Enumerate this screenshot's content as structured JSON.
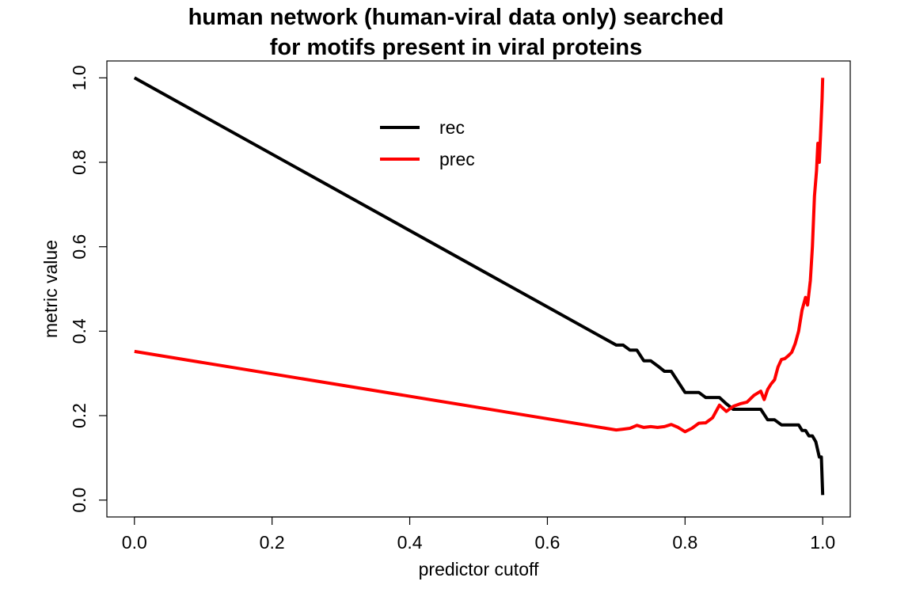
{
  "chart_data": {
    "type": "line",
    "title_lines": [
      "human network (human-viral data only) searched",
      "for motifs present in viral proteins"
    ],
    "xlabel": "predictor cutoff",
    "ylabel": "metric value",
    "xlim": [
      -0.04,
      1.04
    ],
    "ylim": [
      -0.04,
      1.04
    ],
    "x_ticks": [
      0.0,
      0.2,
      0.4,
      0.6,
      0.8,
      1.0
    ],
    "x_tick_labels": [
      "0.0",
      "0.2",
      "0.4",
      "0.6",
      "0.8",
      "1.0"
    ],
    "y_ticks": [
      0.0,
      0.2,
      0.4,
      0.6,
      0.8,
      1.0
    ],
    "y_tick_labels": [
      "0.0",
      "0.2",
      "0.4",
      "0.6",
      "0.8",
      "1.0"
    ],
    "grid": false,
    "legend_position": "top-center",
    "series": [
      {
        "name": "rec",
        "color": "#000000",
        "points": [
          [
            0.0,
            1.0
          ],
          [
            0.7,
            0.367
          ],
          [
            0.71,
            0.367
          ],
          [
            0.72,
            0.355
          ],
          [
            0.73,
            0.355
          ],
          [
            0.74,
            0.33
          ],
          [
            0.75,
            0.33
          ],
          [
            0.76,
            0.318
          ],
          [
            0.77,
            0.305
          ],
          [
            0.78,
            0.305
          ],
          [
            0.79,
            0.28
          ],
          [
            0.8,
            0.255
          ],
          [
            0.81,
            0.255
          ],
          [
            0.82,
            0.255
          ],
          [
            0.83,
            0.243
          ],
          [
            0.84,
            0.243
          ],
          [
            0.85,
            0.243
          ],
          [
            0.86,
            0.228
          ],
          [
            0.87,
            0.215
          ],
          [
            0.88,
            0.215
          ],
          [
            0.89,
            0.215
          ],
          [
            0.9,
            0.215
          ],
          [
            0.91,
            0.215
          ],
          [
            0.92,
            0.19
          ],
          [
            0.93,
            0.19
          ],
          [
            0.94,
            0.178
          ],
          [
            0.95,
            0.178
          ],
          [
            0.96,
            0.178
          ],
          [
            0.965,
            0.178
          ],
          [
            0.97,
            0.165
          ],
          [
            0.975,
            0.165
          ],
          [
            0.98,
            0.152
          ],
          [
            0.985,
            0.152
          ],
          [
            0.99,
            0.138
          ],
          [
            0.995,
            0.102
          ],
          [
            0.998,
            0.102
          ],
          [
            1.0,
            0.012
          ]
        ]
      },
      {
        "name": "prec",
        "color": "#ff0000",
        "points": [
          [
            0.0,
            0.352
          ],
          [
            0.7,
            0.166
          ],
          [
            0.71,
            0.168
          ],
          [
            0.72,
            0.17
          ],
          [
            0.73,
            0.177
          ],
          [
            0.74,
            0.172
          ],
          [
            0.75,
            0.174
          ],
          [
            0.76,
            0.172
          ],
          [
            0.77,
            0.174
          ],
          [
            0.78,
            0.179
          ],
          [
            0.79,
            0.172
          ],
          [
            0.8,
            0.162
          ],
          [
            0.81,
            0.17
          ],
          [
            0.82,
            0.182
          ],
          [
            0.83,
            0.183
          ],
          [
            0.84,
            0.195
          ],
          [
            0.85,
            0.225
          ],
          [
            0.86,
            0.21
          ],
          [
            0.87,
            0.222
          ],
          [
            0.88,
            0.228
          ],
          [
            0.89,
            0.232
          ],
          [
            0.9,
            0.248
          ],
          [
            0.91,
            0.258
          ],
          [
            0.915,
            0.238
          ],
          [
            0.92,
            0.262
          ],
          [
            0.925,
            0.275
          ],
          [
            0.93,
            0.285
          ],
          [
            0.935,
            0.315
          ],
          [
            0.94,
            0.333
          ],
          [
            0.945,
            0.335
          ],
          [
            0.95,
            0.342
          ],
          [
            0.955,
            0.35
          ],
          [
            0.96,
            0.37
          ],
          [
            0.965,
            0.4
          ],
          [
            0.97,
            0.45
          ],
          [
            0.975,
            0.48
          ],
          [
            0.978,
            0.462
          ],
          [
            0.982,
            0.52
          ],
          [
            0.985,
            0.6
          ],
          [
            0.988,
            0.72
          ],
          [
            0.991,
            0.78
          ],
          [
            0.993,
            0.845
          ],
          [
            0.995,
            0.8
          ],
          [
            0.997,
            0.87
          ],
          [
            0.999,
            0.95
          ],
          [
            1.0,
            1.0
          ]
        ]
      }
    ]
  }
}
